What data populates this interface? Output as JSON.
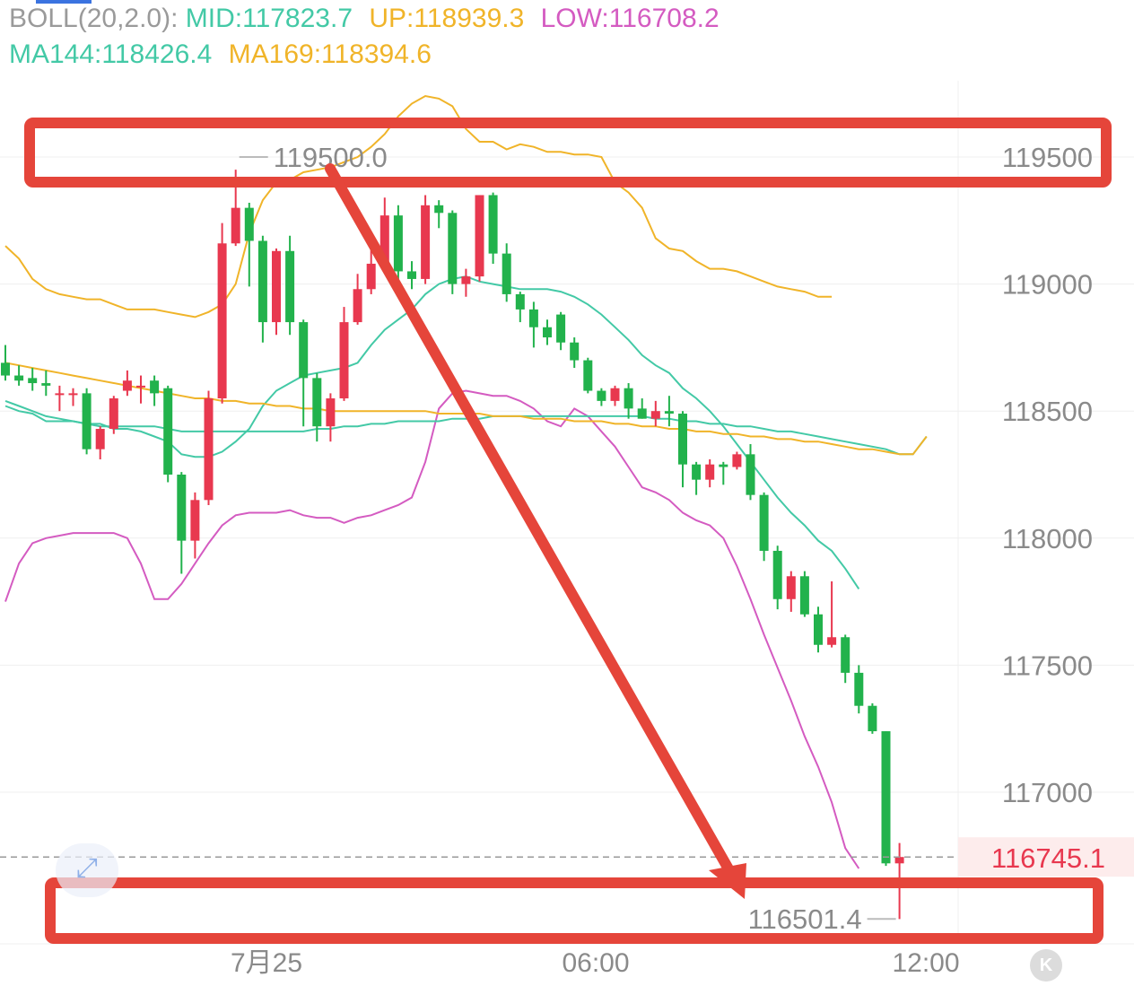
{
  "legend": {
    "boll_label": "BOLL(20,2.0):",
    "mid": "MID:117823.7",
    "up": "UP:118939.3",
    "low": "LOW:116708.2",
    "ma144": "MA144:118426.4",
    "ma169": "MA169:118394.6"
  },
  "colors": {
    "bull": "#e8384f",
    "bear": "#22b24c",
    "mid": "#43c9a6",
    "up": "#f0b429",
    "low": "#d45bc1",
    "ma144": "#43c9a6",
    "ma169": "#f0b429",
    "annotation": "#e5453a",
    "grid": "#efefef",
    "axis_text": "#8a8a8a",
    "last_price_text": "#e8384f",
    "last_price_bg": "#fdecec"
  },
  "icons": {
    "expand": "expand-arrows-icon",
    "kline": "k-line-icon",
    "k_glyph": "K"
  },
  "chart_data": {
    "type": "candlestick",
    "ylim": [
      116390,
      119720
    ],
    "y_ticks": [
      "119500",
      "119000",
      "118500",
      "118000",
      "117500",
      "117000"
    ],
    "x_ticks": [
      "7月25",
      "06:00",
      "12:00"
    ],
    "last_price": "116745.1",
    "high_marker": "119500.0",
    "low_marker": "116501.4",
    "candles": [
      [
        118690,
        118640,
        118760,
        118620
      ],
      [
        118640,
        118620,
        118680,
        118600
      ],
      [
        118630,
        118610,
        118670,
        118580
      ],
      [
        118610,
        118600,
        118660,
        118560
      ],
      [
        118570,
        118570,
        118600,
        118500
      ],
      [
        118570,
        118570,
        118590,
        118520
      ],
      [
        118570,
        118350,
        118590,
        118330
      ],
      [
        118350,
        118430,
        118440,
        118310
      ],
      [
        118430,
        118550,
        118560,
        118410
      ],
      [
        118580,
        118620,
        118660,
        118560
      ],
      [
        118600,
        118600,
        118640,
        118530
      ],
      [
        118620,
        118570,
        118640,
        118520
      ],
      [
        118590,
        118250,
        118600,
        118220
      ],
      [
        118250,
        117990,
        118260,
        117860
      ],
      [
        117990,
        118150,
        118180,
        117920
      ],
      [
        118150,
        118550,
        118580,
        118130
      ],
      [
        118550,
        119160,
        119240,
        118530
      ],
      [
        119160,
        119300,
        119450,
        119150
      ],
      [
        119300,
        119170,
        119320,
        118990
      ],
      [
        119170,
        118850,
        119190,
        118770
      ],
      [
        118850,
        119130,
        119140,
        118800
      ],
      [
        119130,
        118850,
        119190,
        118800
      ],
      [
        118850,
        118630,
        118860,
        118440
      ],
      [
        118630,
        118440,
        118650,
        118380
      ],
      [
        118440,
        118550,
        118570,
        118380
      ],
      [
        118550,
        118850,
        118910,
        118540
      ],
      [
        118850,
        118980,
        119040,
        118840
      ],
      [
        118980,
        119080,
        119140,
        118960
      ],
      [
        119080,
        119270,
        119340,
        119060
      ],
      [
        119270,
        119050,
        119310,
        119010
      ],
      [
        119050,
        119020,
        119090,
        118980
      ],
      [
        119020,
        119310,
        119350,
        119000
      ],
      [
        119310,
        119280,
        119330,
        119220
      ],
      [
        119280,
        119000,
        119290,
        118960
      ],
      [
        119000,
        119030,
        119060,
        118950
      ],
      [
        119030,
        119350,
        119350,
        119010
      ],
      [
        119350,
        119120,
        119360,
        119080
      ],
      [
        119120,
        118960,
        119160,
        118930
      ],
      [
        118960,
        118900,
        118970,
        118850
      ],
      [
        118900,
        118830,
        118930,
        118750
      ],
      [
        118830,
        118790,
        118860,
        118760
      ],
      [
        118880,
        118770,
        118890,
        118740
      ],
      [
        118770,
        118700,
        118790,
        118670
      ],
      [
        118700,
        118580,
        118710,
        118570
      ],
      [
        118580,
        118540,
        118590,
        118520
      ],
      [
        118540,
        118590,
        118600,
        118520
      ],
      [
        118590,
        118510,
        118610,
        118470
      ],
      [
        118510,
        118470,
        118550,
        118470
      ],
      [
        118470,
        118500,
        118540,
        118440
      ],
      [
        118500,
        118490,
        118560,
        118440
      ],
      [
        118490,
        118290,
        118500,
        118200
      ],
      [
        118290,
        118230,
        118300,
        118170
      ],
      [
        118230,
        118290,
        118310,
        118200
      ],
      [
        118290,
        118280,
        118300,
        118210
      ],
      [
        118280,
        118330,
        118340,
        118270
      ],
      [
        118330,
        118170,
        118370,
        118150
      ],
      [
        118170,
        117950,
        118180,
        117910
      ],
      [
        117950,
        117760,
        117970,
        117720
      ],
      [
        117760,
        117850,
        117870,
        117710
      ],
      [
        117850,
        117700,
        117870,
        117690
      ],
      [
        117700,
        117580,
        117730,
        117550
      ],
      [
        117580,
        117610,
        117830,
        117570
      ],
      [
        117610,
        117470,
        117620,
        117430
      ],
      [
        117470,
        117340,
        117500,
        117310
      ],
      [
        117340,
        117240,
        117350,
        117230
      ],
      [
        117240,
        116720,
        117240,
        116710
      ],
      [
        116720,
        116745,
        116800,
        116501
      ]
    ],
    "series": [
      {
        "name": "UP",
        "values": [
          119150,
          119100,
          119020,
          118980,
          118960,
          118950,
          118940,
          118940,
          118920,
          118900,
          118900,
          118900,
          118890,
          118880,
          118870,
          118890,
          118920,
          119000,
          119200,
          119330,
          119400,
          119410,
          119440,
          119450,
          119460,
          119480,
          119500,
          119540,
          119590,
          119660,
          119710,
          119740,
          119730,
          119700,
          119610,
          119560,
          119560,
          119530,
          119550,
          119540,
          119520,
          119520,
          119510,
          119510,
          119500,
          119400,
          119360,
          119300,
          119180,
          119140,
          119130,
          119090,
          119060,
          119060,
          119050,
          119030,
          119010,
          118990,
          118980,
          118970,
          118950,
          118950
        ]
      },
      {
        "name": "MID",
        "values": [
          118520,
          118500,
          118490,
          118460,
          118460,
          118460,
          118450,
          118450,
          118430,
          118430,
          118420,
          118400,
          118380,
          118330,
          118320,
          118320,
          118340,
          118380,
          118430,
          118520,
          118580,
          118610,
          118640,
          118650,
          118660,
          118670,
          118690,
          118760,
          118820,
          118860,
          118900,
          118960,
          119000,
          119020,
          119030,
          119010,
          119000,
          118990,
          118980,
          118980,
          118980,
          118970,
          118950,
          118920,
          118880,
          118830,
          118780,
          118720,
          118680,
          118650,
          118590,
          118550,
          118500,
          118440,
          118370,
          118300,
          118230,
          118160,
          118100,
          118050,
          117990,
          117950,
          117880,
          117800
        ]
      },
      {
        "name": "LOW",
        "values": [
          117750,
          117900,
          117980,
          118000,
          118010,
          118020,
          118020,
          118020,
          118020,
          118000,
          117900,
          117760,
          117760,
          117820,
          117900,
          117980,
          118050,
          118090,
          118100,
          118100,
          118100,
          118110,
          118090,
          118080,
          118080,
          118060,
          118080,
          118090,
          118110,
          118130,
          118160,
          118300,
          118510,
          118570,
          118580,
          118570,
          118560,
          118560,
          118540,
          118510,
          118460,
          118440,
          118510,
          118480,
          118420,
          118360,
          118280,
          118200,
          118180,
          118150,
          118100,
          118070,
          118050,
          118000,
          117890,
          117760,
          117620,
          117490,
          117360,
          117220,
          117100,
          116960,
          116780,
          116700
        ]
      },
      {
        "name": "MA144",
        "values": [
          118540,
          118520,
          118500,
          118480,
          118470,
          118460,
          118450,
          118440,
          118440,
          118440,
          118440,
          118440,
          118430,
          118420,
          118420,
          118420,
          118420,
          118420,
          118420,
          118420,
          118420,
          118420,
          118420,
          118430,
          118430,
          118440,
          118440,
          118450,
          118450,
          118460,
          118460,
          118460,
          118460,
          118470,
          118470,
          118470,
          118480,
          118480,
          118480,
          118480,
          118480,
          118480,
          118480,
          118480,
          118480,
          118480,
          118480,
          118480,
          118470,
          118470,
          118460,
          118460,
          118450,
          118450,
          118440,
          118440,
          118430,
          118420,
          118420,
          118410,
          118400,
          118390,
          118380,
          118370,
          118360,
          118350,
          118330,
          118330,
          118400
        ]
      },
      {
        "name": "MA169",
        "values": [
          118690,
          118680,
          118670,
          118660,
          118650,
          118640,
          118630,
          118620,
          118610,
          118600,
          118590,
          118580,
          118570,
          118560,
          118550,
          118550,
          118540,
          118540,
          118530,
          118530,
          118520,
          118520,
          118510,
          118510,
          118500,
          118500,
          118500,
          118500,
          118500,
          118500,
          118500,
          118500,
          118490,
          118490,
          118490,
          118490,
          118480,
          118480,
          118480,
          118470,
          118470,
          118470,
          118460,
          118460,
          118460,
          118450,
          118450,
          118440,
          118440,
          118430,
          118430,
          118420,
          118420,
          118410,
          118410,
          118400,
          118400,
          118390,
          118390,
          118380,
          118380,
          118370,
          118360,
          118350,
          118350,
          118340,
          118330,
          118330,
          118400
        ]
      }
    ]
  }
}
